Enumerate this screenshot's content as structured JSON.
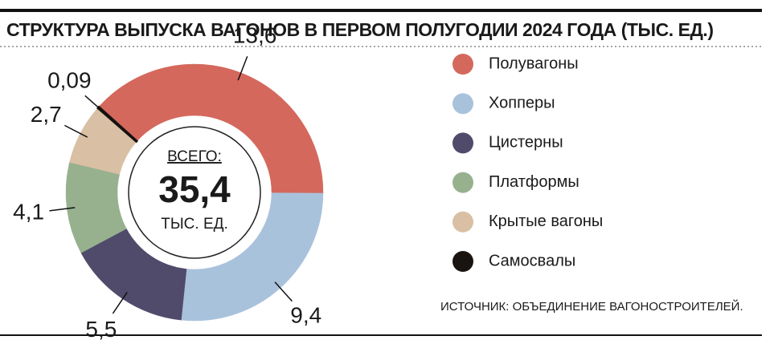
{
  "chart_data": {
    "type": "donut",
    "title": "СТРУКТУРА ВЫПУСКА ВАГОНОВ В ПЕРВОМ ПОЛУГОДИИ 2024 ГОДА (ТЫС. ЕД.)",
    "categories": [
      "Полувагоны",
      "Хопперы",
      "Цистерны",
      "Платформы",
      "Крытые вагоны",
      "Самосвалы"
    ],
    "values": [
      13.6,
      9.4,
      5.5,
      4.1,
      2.7,
      0.09
    ],
    "value_labels": [
      "13,6",
      "9,4",
      "5,5",
      "4,1",
      "2,7",
      "0,09"
    ],
    "colors": [
      "#d4685c",
      "#a9c2dc",
      "#504a6b",
      "#97b18f",
      "#d9bfa3",
      "#1a1410"
    ],
    "center_label": "ВСЕГО:",
    "total": "35,4",
    "center_unit": "ТЫС. ЕД.",
    "source": "ИСТОЧНИК: ОБЪЕДИНЕНИЕ ВАГОНОСТРОИТЕЛЕЙ."
  }
}
